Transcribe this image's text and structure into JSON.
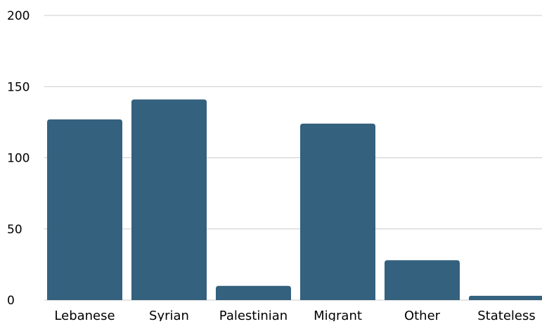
{
  "chart_data": {
    "type": "bar",
    "title": "",
    "xlabel": "",
    "ylabel": "",
    "categories": [
      "Lebanese",
      "Syrian",
      "Palestinian",
      "Migrant",
      "Other",
      "Stateless"
    ],
    "values": [
      127,
      141,
      10,
      124,
      28,
      3
    ],
    "ylim": [
      0,
      200
    ],
    "yticks": [
      0,
      50,
      100,
      150,
      200
    ],
    "grid": true,
    "legend": "none",
    "colors": {
      "bar": "#34617e",
      "grid": "#cccccc",
      "text": "#000000"
    }
  }
}
